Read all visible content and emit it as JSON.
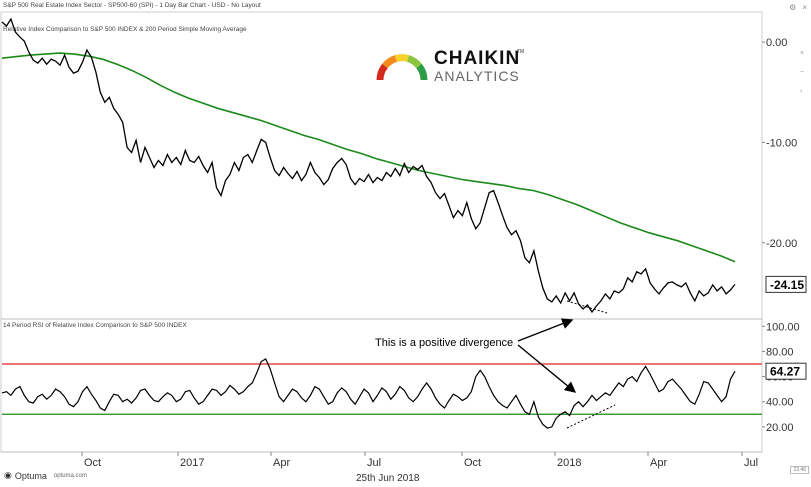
{
  "header": {
    "chart_title": "S&P 500 Real Estate Index Sector - SP500-60 (SPI) - 1 Day Bar Chart - USD - No Layout",
    "panel_title": "Relative Index Comparison to S&P 500 INDEX & 200 Period Simple Moving Average",
    "rsi_title": "14 Period RSI of Relative Index Comparison to S&P 500 INDEX"
  },
  "toolbar": {
    "close_label": "×",
    "gear_icon": "gear-icon"
  },
  "logo": {
    "line1": "CHAIKIN",
    "tm": "TM",
    "line2": "ANALYTICS",
    "arc_colors": [
      "#d42a20",
      "#f28c1e",
      "#f6d12a",
      "#8cc640",
      "#2e9c47"
    ]
  },
  "footer": {
    "brand": "Optuma",
    "brand_url": "optuma.com",
    "date": "25th Jun 2018",
    "corner_value": "13.46"
  },
  "colors": {
    "price": "#000000",
    "sma": "#1b8a1b",
    "upper_band": "#e02020",
    "lower_band": "#1b8a1b"
  },
  "chart_data": [
    {
      "type": "line",
      "name": "relative-index-panel",
      "x_ticks": [
        "Oct",
        "2017",
        "Apr",
        "Jul",
        "Oct",
        "2018",
        "Apr",
        "Jul"
      ],
      "y_ticks": [
        "0.00",
        "-10.00",
        "-20.00"
      ],
      "ylim": [
        -27.5,
        3.0
      ],
      "current_value": "-24.15",
      "series": [
        {
          "values": [
            2.0,
            1.6,
            2.3,
            1.0,
            0.5,
            0.1,
            -1.0,
            -1.8,
            -2.1,
            -1.6,
            -2.2,
            -1.7,
            -1.9,
            -2.3,
            -1.3,
            -2.5,
            -3.1,
            -2.9,
            -2.0,
            -0.8,
            -1.5,
            -3.0,
            -5.0,
            -6.0,
            -5.5,
            -6.6,
            -7.2,
            -8.0,
            -10.5,
            -11.0,
            -9.8,
            -12.0,
            -10.5,
            -11.5,
            -12.5,
            -11.8,
            -12.3,
            -11.2,
            -12.0,
            -11.5,
            -12.2,
            -10.8,
            -11.8,
            -12.0,
            -11.4,
            -12.3,
            -13.0,
            -12.0,
            -14.5,
            -15.3,
            -13.8,
            -13.2,
            -12.0,
            -12.8,
            -11.5,
            -11.2,
            -12.0,
            -10.8,
            -9.7,
            -10.0,
            -11.5,
            -12.8,
            -13.3,
            -12.5,
            -13.1,
            -13.6,
            -12.9,
            -13.8,
            -13.2,
            -12.0,
            -13.0,
            -13.5,
            -14.2,
            -13.7,
            -12.6,
            -12.0,
            -11.6,
            -12.2,
            -13.6,
            -14.2,
            -13.6,
            -13.9,
            -13.2,
            -14.0,
            -13.5,
            -13.8,
            -13.0,
            -13.4,
            -12.6,
            -13.3,
            -12.1,
            -13.0,
            -12.4,
            -12.7,
            -12.3,
            -13.4,
            -14.0,
            -15.0,
            -15.6,
            -15.1,
            -16.3,
            -17.5,
            -16.8,
            -17.3,
            -16.0,
            -17.6,
            -18.6,
            -18.0,
            -16.5,
            -15.0,
            -14.8,
            -16.0,
            -17.3,
            -18.5,
            -19.2,
            -18.8,
            -19.8,
            -21.5,
            -22.0,
            -20.8,
            -22.8,
            -24.5,
            -25.6,
            -25.9,
            -25.3,
            -26.0,
            -25.0,
            -25.8,
            -25.0,
            -26.1,
            -26.6,
            -26.2,
            -26.9,
            -26.3,
            -25.8,
            -25.1,
            -25.6,
            -24.8,
            -25.0,
            -24.6,
            -23.5,
            -23.9,
            -22.9,
            -23.1,
            -22.6,
            -24.0,
            -24.6,
            -25.1,
            -24.5,
            -24.0,
            -23.9,
            -24.2,
            -24.4,
            -24.0,
            -25.0,
            -25.8,
            -24.8,
            -25.3,
            -25.0,
            -24.2,
            -24.8,
            -24.4,
            -25.1,
            -24.7,
            -24.15
          ]
        },
        {
          "values": [
            -1.6,
            -1.45,
            -1.3,
            -1.2,
            -1.1,
            -1.2,
            -1.4,
            -1.7,
            -2.2,
            -2.8,
            -3.5,
            -4.3,
            -5.0,
            -5.6,
            -6.1,
            -6.6,
            -7.0,
            -7.4,
            -7.8,
            -8.3,
            -8.8,
            -9.3,
            -9.7,
            -10.2,
            -10.7,
            -11.1,
            -11.6,
            -12.0,
            -12.4,
            -12.8,
            -13.1,
            -13.4,
            -13.7,
            -13.9,
            -14.1,
            -14.3,
            -14.6,
            -14.8,
            -15.2,
            -15.7,
            -16.2,
            -16.8,
            -17.4,
            -18.0,
            -18.5,
            -19.0,
            -19.4,
            -19.8,
            -20.3,
            -20.8,
            -21.3,
            -21.9
          ]
        }
      ]
    },
    {
      "type": "line",
      "name": "rsi-panel",
      "y_ticks": [
        "100.00",
        "80.00",
        "60.00",
        "40.00",
        "20.00"
      ],
      "ylim": [
        0,
        105
      ],
      "upper_band": 70,
      "lower_band": 30,
      "current_value": "64.27",
      "annotation": "This is a positive divergence",
      "series": [
        {
          "values": [
            47.0,
            48.0,
            45.0,
            50.0,
            52.0,
            45.0,
            40.0,
            39.0,
            44.0,
            46.0,
            42.0,
            45.0,
            50.0,
            48.0,
            44.0,
            38.0,
            36.0,
            40.0,
            48.0,
            52.0,
            46.0,
            41.0,
            35.0,
            33.0,
            40.0,
            46.0,
            45.0,
            40.0,
            42.0,
            39.0,
            43.0,
            49.0,
            50.0,
            45.0,
            41.0,
            40.0,
            44.0,
            47.0,
            45.0,
            40.0,
            42.0,
            48.0,
            49.0,
            43.0,
            38.0,
            40.0,
            45.0,
            50.0,
            49.0,
            45.0,
            48.0,
            53.0,
            50.0,
            46.0,
            48.0,
            52.0,
            55.0,
            63.0,
            72.0,
            74.0,
            66.0,
            55.0,
            44.0,
            40.0,
            45.0,
            50.0,
            48.0,
            43.0,
            40.0,
            45.0,
            52.0,
            50.0,
            44.0,
            38.0,
            40.0,
            47.0,
            51.0,
            48.0,
            42.0,
            38.0,
            44.0,
            50.0,
            47.0,
            40.0,
            45.0,
            51.0,
            48.0,
            42.0,
            46.0,
            52.0,
            49.0,
            43.0,
            40.0,
            44.0,
            50.0,
            55.0,
            50.0,
            43.0,
            38.0,
            35.0,
            41.0,
            46.0,
            44.0,
            41.0,
            43.0,
            48.0,
            60.0,
            65.0,
            60.0,
            52.0,
            45.0,
            40.0,
            37.0,
            35.0,
            40.0,
            45.0,
            38.0,
            32.0,
            30.0,
            40.0,
            28.0,
            22.0,
            19.0,
            20.0,
            27.0,
            30.0,
            32.0,
            29.0,
            37.0,
            40.0,
            36.0,
            40.0,
            45.0,
            41.0,
            44.0,
            47.0,
            45.0,
            50.0,
            55.0,
            52.0,
            58.0,
            60.0,
            56.0,
            63.0,
            68.0,
            62.0,
            55.0,
            48.0,
            50.0,
            56.0,
            58.0,
            54.0,
            50.0,
            45.0,
            40.0,
            38.0,
            46.0,
            56.0,
            55.0,
            50.0,
            45.0,
            40.0,
            44.0,
            58.0,
            64.27
          ]
        }
      ]
    }
  ]
}
